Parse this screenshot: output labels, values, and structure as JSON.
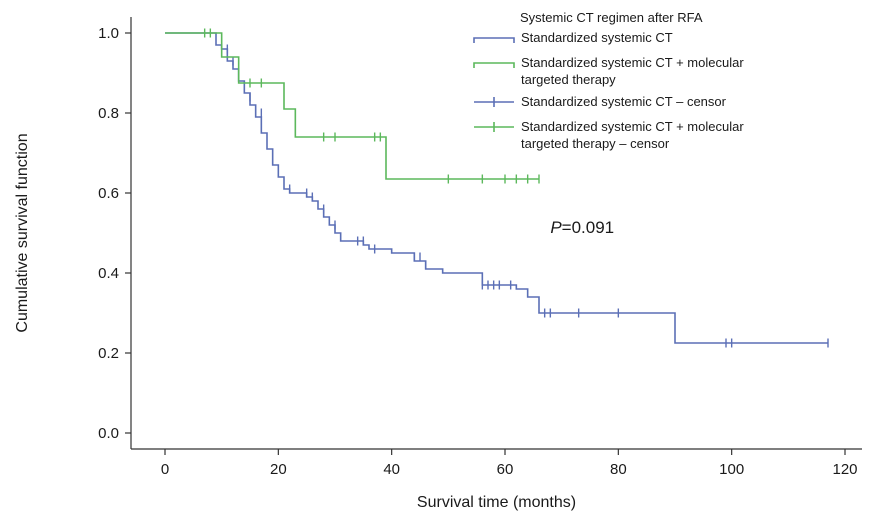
{
  "chart_data": {
    "type": "line",
    "step": true,
    "title": "",
    "xlabel": "Survival time (months)",
    "ylabel": "Cumulative survival function",
    "xlim": [
      -6,
      123
    ],
    "ylim": [
      -0.04,
      1.04
    ],
    "xticks": [
      0,
      20,
      40,
      60,
      80,
      100,
      120
    ],
    "xtick_labels": [
      "0",
      "20",
      "40",
      "60",
      "80",
      "100",
      "120"
    ],
    "yticks": [
      0.0,
      0.2,
      0.4,
      0.6,
      0.8,
      1.0
    ],
    "ytick_labels": [
      "0.0",
      "0.2",
      "0.4",
      "0.6",
      "0.8",
      "1.0"
    ],
    "grid": false,
    "legend": {
      "title": "Systemic CT regimen after RFA",
      "placement": "top-right",
      "entries": [
        {
          "lines": [
            "Standardized systemic CT"
          ],
          "color": "#5b6fb6",
          "marker": "step"
        },
        {
          "lines": [
            "Standardized systemic CT + molecular",
            "targeted therapy"
          ],
          "color": "#5cb85c",
          "marker": "step"
        },
        {
          "lines": [
            "Standardized systemic CT – censor"
          ],
          "color": "#5b6fb6",
          "marker": "censor"
        },
        {
          "lines": [
            "Standardized systemic CT + molecular",
            "targeted therapy – censor"
          ],
          "color": "#5cb85c",
          "marker": "censor"
        }
      ]
    },
    "annotation": {
      "italic": "P",
      "text": "=0.091",
      "x": 68,
      "y": 0.5
    },
    "series": [
      {
        "name": "Standardized systemic CT",
        "color": "#5b6fb6",
        "x": [
          0,
          9,
          10,
          11,
          12,
          13,
          14,
          15,
          16,
          17,
          18,
          19,
          20,
          21,
          22,
          25,
          26,
          27,
          28,
          29,
          30,
          31,
          35,
          36,
          40,
          44,
          46,
          49,
          56,
          62,
          64,
          66,
          90,
          117
        ],
        "y": [
          1.0,
          0.97,
          0.96,
          0.93,
          0.91,
          0.88,
          0.85,
          0.82,
          0.79,
          0.75,
          0.71,
          0.67,
          0.64,
          0.61,
          0.6,
          0.59,
          0.58,
          0.56,
          0.54,
          0.52,
          0.5,
          0.48,
          0.47,
          0.46,
          0.45,
          0.43,
          0.41,
          0.4,
          0.37,
          0.36,
          0.34,
          0.3,
          0.225,
          0.225
        ],
        "censor_x": [
          11,
          12,
          15,
          17,
          22,
          25,
          26,
          28,
          30,
          34,
          35,
          37,
          44,
          45,
          46,
          56,
          57,
          58,
          59,
          61,
          67,
          68,
          73,
          80,
          99,
          100,
          117
        ],
        "censor_y": [
          0.96,
          0.93,
          0.84,
          0.8,
          0.61,
          0.6,
          0.59,
          0.56,
          0.52,
          0.48,
          0.48,
          0.46,
          0.44,
          0.44,
          0.42,
          0.37,
          0.37,
          0.37,
          0.37,
          0.37,
          0.3,
          0.3,
          0.3,
          0.3,
          0.225,
          0.225,
          0.225
        ]
      },
      {
        "name": "Standardized systemic CT + molecular targeted therapy",
        "color": "#5cb85c",
        "x": [
          0,
          10,
          13,
          21,
          23,
          39,
          66
        ],
        "y": [
          1.0,
          0.94,
          0.875,
          0.81,
          0.74,
          0.635,
          0.635
        ],
        "censor_x": [
          7,
          8,
          15,
          17,
          28,
          30,
          37,
          38,
          50,
          56,
          60,
          62,
          64,
          66
        ],
        "censor_y": [
          1.0,
          1.0,
          0.875,
          0.875,
          0.74,
          0.74,
          0.74,
          0.74,
          0.635,
          0.635,
          0.635,
          0.635,
          0.635,
          0.635
        ]
      }
    ]
  }
}
